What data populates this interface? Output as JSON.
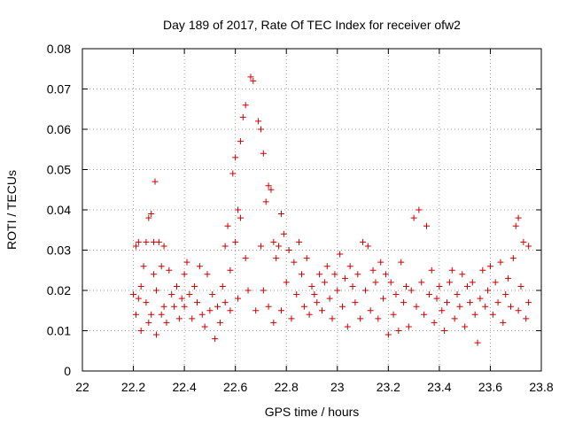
{
  "chart_data": {
    "type": "scatter",
    "title": "Day 189 of 2017, Rate Of TEC Index for receiver ofw2",
    "xlabel": "GPS time / hours",
    "ylabel": "ROTI / TECUs",
    "xlim": [
      22,
      23.8
    ],
    "ylim": [
      0,
      0.08
    ],
    "x_ticks": [
      "22",
      "22.2",
      "22.4",
      "22.6",
      "22.8",
      "23",
      "23.2",
      "23.4",
      "23.6",
      "23.8"
    ],
    "y_ticks": [
      "0",
      "0.01",
      "0.02",
      "0.03",
      "0.04",
      "0.05",
      "0.06",
      "0.07",
      "0.08"
    ],
    "grid": true,
    "marker": "+",
    "marker_color": "#cc0000",
    "series": [
      {
        "points": [
          [
            22.2,
            0.019
          ],
          [
            22.21,
            0.031
          ],
          [
            22.21,
            0.014
          ],
          [
            22.22,
            0.032
          ],
          [
            22.22,
            0.018
          ],
          [
            22.23,
            0.01
          ],
          [
            22.23,
            0.021
          ],
          [
            22.24,
            0.026
          ],
          [
            22.25,
            0.032
          ],
          [
            22.25,
            0.017
          ],
          [
            22.26,
            0.012
          ],
          [
            22.26,
            0.038
          ],
          [
            22.27,
            0.039
          ],
          [
            22.27,
            0.014
          ],
          [
            22.28,
            0.032
          ],
          [
            22.28,
            0.024
          ],
          [
            22.285,
            0.047
          ],
          [
            22.29,
            0.009
          ],
          [
            22.29,
            0.02
          ],
          [
            22.3,
            0.032
          ],
          [
            22.31,
            0.014
          ],
          [
            22.31,
            0.026
          ],
          [
            22.32,
            0.031
          ],
          [
            22.32,
            0.016
          ],
          [
            22.33,
            0.012
          ],
          [
            22.34,
            0.025
          ],
          [
            22.35,
            0.019
          ],
          [
            22.36,
            0.016
          ],
          [
            22.37,
            0.021
          ],
          [
            22.38,
            0.013
          ],
          [
            22.39,
            0.018
          ],
          [
            22.4,
            0.024
          ],
          [
            22.4,
            0.016
          ],
          [
            22.41,
            0.027
          ],
          [
            22.42,
            0.019
          ],
          [
            22.43,
            0.013
          ],
          [
            22.44,
            0.021
          ],
          [
            22.45,
            0.017
          ],
          [
            22.46,
            0.026
          ],
          [
            22.47,
            0.014
          ],
          [
            22.48,
            0.011
          ],
          [
            22.49,
            0.024
          ],
          [
            22.5,
            0.015
          ],
          [
            22.51,
            0.019
          ],
          [
            22.52,
            0.008
          ],
          [
            22.53,
            0.016
          ],
          [
            22.54,
            0.012
          ],
          [
            22.55,
            0.021
          ],
          [
            22.56,
            0.031
          ],
          [
            22.56,
            0.017
          ],
          [
            22.57,
            0.036
          ],
          [
            22.58,
            0.025
          ],
          [
            22.58,
            0.015
          ],
          [
            22.59,
            0.049
          ],
          [
            22.6,
            0.053
          ],
          [
            22.6,
            0.032
          ],
          [
            22.61,
            0.04
          ],
          [
            22.61,
            0.018
          ],
          [
            22.62,
            0.057
          ],
          [
            22.62,
            0.038
          ],
          [
            22.63,
            0.063
          ],
          [
            22.64,
            0.066
          ],
          [
            22.64,
            0.028
          ],
          [
            22.65,
            0.02
          ],
          [
            22.66,
            0.073
          ],
          [
            22.67,
            0.072
          ],
          [
            22.68,
            0.015
          ],
          [
            22.69,
            0.062
          ],
          [
            22.7,
            0.06
          ],
          [
            22.7,
            0.031
          ],
          [
            22.71,
            0.054
          ],
          [
            22.71,
            0.02
          ],
          [
            22.72,
            0.042
          ],
          [
            22.73,
            0.046
          ],
          [
            22.73,
            0.016
          ],
          [
            22.74,
            0.045
          ],
          [
            22.75,
            0.032
          ],
          [
            22.75,
            0.012
          ],
          [
            22.76,
            0.028
          ],
          [
            22.77,
            0.031
          ],
          [
            22.78,
            0.039
          ],
          [
            22.78,
            0.015
          ],
          [
            22.79,
            0.034
          ],
          [
            22.8,
            0.022
          ],
          [
            22.81,
            0.03
          ],
          [
            22.82,
            0.013
          ],
          [
            22.83,
            0.027
          ],
          [
            22.84,
            0.019
          ],
          [
            22.85,
            0.032
          ],
          [
            22.86,
            0.024
          ],
          [
            22.87,
            0.016
          ],
          [
            22.88,
            0.028
          ],
          [
            22.89,
            0.014
          ],
          [
            22.9,
            0.021
          ],
          [
            22.91,
            0.019
          ],
          [
            22.92,
            0.017
          ],
          [
            22.93,
            0.024
          ],
          [
            22.94,
            0.015
          ],
          [
            22.95,
            0.022
          ],
          [
            22.96,
            0.026
          ],
          [
            22.97,
            0.018
          ],
          [
            22.98,
            0.013
          ],
          [
            22.99,
            0.024
          ],
          [
            23.0,
            0.02
          ],
          [
            23.01,
            0.029
          ],
          [
            23.02,
            0.016
          ],
          [
            23.03,
            0.023
          ],
          [
            23.04,
            0.011
          ],
          [
            23.05,
            0.026
          ],
          [
            23.06,
            0.021
          ],
          [
            23.07,
            0.017
          ],
          [
            23.08,
            0.024
          ],
          [
            23.09,
            0.013
          ],
          [
            23.1,
            0.032
          ],
          [
            23.11,
            0.02
          ],
          [
            23.12,
            0.031
          ],
          [
            23.13,
            0.015
          ],
          [
            23.14,
            0.025
          ],
          [
            23.15,
            0.022
          ],
          [
            23.16,
            0.013
          ],
          [
            23.17,
            0.027
          ],
          [
            23.18,
            0.018
          ],
          [
            23.19,
            0.024
          ],
          [
            23.2,
            0.009
          ],
          [
            23.21,
            0.022
          ],
          [
            23.22,
            0.014
          ],
          [
            23.23,
            0.019
          ],
          [
            23.24,
            0.01
          ],
          [
            23.25,
            0.027
          ],
          [
            23.26,
            0.017
          ],
          [
            23.27,
            0.021
          ],
          [
            23.28,
            0.011
          ],
          [
            23.29,
            0.02
          ],
          [
            23.3,
            0.038
          ],
          [
            23.31,
            0.016
          ],
          [
            23.32,
            0.04
          ],
          [
            23.33,
            0.022
          ],
          [
            23.34,
            0.014
          ],
          [
            23.35,
            0.036
          ],
          [
            23.36,
            0.019
          ],
          [
            23.37,
            0.025
          ],
          [
            23.38,
            0.012
          ],
          [
            23.39,
            0.018
          ],
          [
            23.4,
            0.021
          ],
          [
            23.41,
            0.015
          ],
          [
            23.42,
            0.01
          ],
          [
            23.43,
            0.017
          ],
          [
            23.44,
            0.022
          ],
          [
            23.45,
            0.025
          ],
          [
            23.46,
            0.013
          ],
          [
            23.47,
            0.019
          ],
          [
            23.48,
            0.016
          ],
          [
            23.49,
            0.024
          ],
          [
            23.5,
            0.011
          ],
          [
            23.51,
            0.021
          ],
          [
            23.52,
            0.017
          ],
          [
            23.53,
            0.022
          ],
          [
            23.54,
            0.014
          ],
          [
            23.55,
            0.007
          ],
          [
            23.56,
            0.018
          ],
          [
            23.57,
            0.025
          ],
          [
            23.58,
            0.016
          ],
          [
            23.59,
            0.02
          ],
          [
            23.6,
            0.026
          ],
          [
            23.61,
            0.014
          ],
          [
            23.62,
            0.022
          ],
          [
            23.63,
            0.017
          ],
          [
            23.64,
            0.027
          ],
          [
            23.65,
            0.012
          ],
          [
            23.66,
            0.019
          ],
          [
            23.67,
            0.023
          ],
          [
            23.68,
            0.016
          ],
          [
            23.69,
            0.028
          ],
          [
            23.7,
            0.036
          ],
          [
            23.71,
            0.038
          ],
          [
            23.71,
            0.015
          ],
          [
            23.72,
            0.021
          ],
          [
            23.73,
            0.032
          ],
          [
            23.74,
            0.013
          ],
          [
            23.75,
            0.031
          ],
          [
            23.75,
            0.017
          ]
        ]
      }
    ]
  }
}
